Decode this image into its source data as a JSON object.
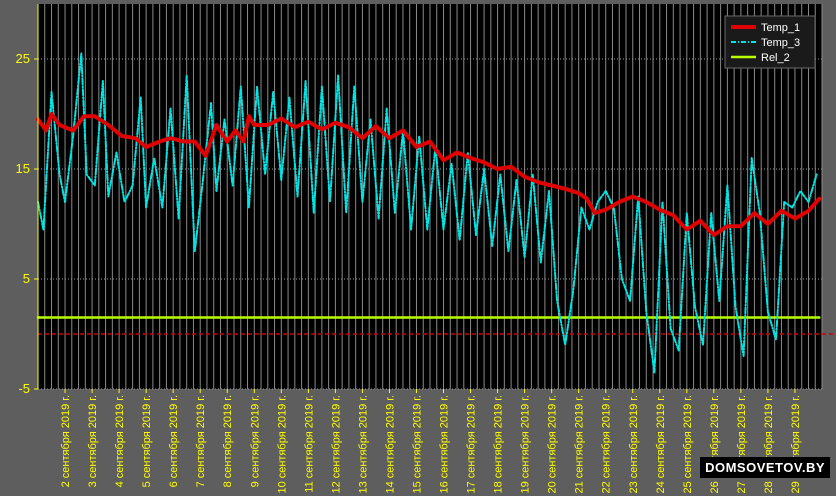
{
  "chart_data": {
    "type": "line",
    "title": "",
    "xlabel": "",
    "ylabel": "",
    "ylim": [
      -5,
      30
    ],
    "xlim": [
      1,
      30
    ],
    "yticks": [
      -5,
      5,
      15,
      25
    ],
    "x_tick_labels": [
      "2 сентября 2019 г.",
      "3 сентября 2019 г.",
      "4 сентября 2019 г.",
      "5 сентября 2019 г.",
      "6 сентября 2019 г.",
      "7 сентября 2019 г.",
      "8 сентября 2019 г.",
      "9 сентября 2019 г.",
      "10 сентября 2019 г.",
      "11 сентября 2019 г.",
      "12 сентября 2019 г.",
      "13 сентября 2019 г.",
      "14 сентября 2019 г.",
      "15 сентября 2019 г.",
      "16 сентября 2019 г.",
      "17 сентября 2019 г.",
      "18 сентября 2019 г.",
      "19 сентября 2019 г.",
      "20 сентября 2019 г.",
      "21 сентября 2019 г.",
      "22 сентября 2019 г.",
      "23 сентября 2019 г.",
      "24 сентября 2019 г.",
      "25 сентября 2019 г.",
      "26 сентября 2019 г.",
      "27 сентября 2019 г.",
      "28 сентября 2019 г.",
      "29 сентября 2019 г."
    ],
    "grid": true,
    "legend_position": "top-right",
    "series": [
      {
        "name": "Temp_1",
        "color": "#e00000",
        "style": "solid",
        "x": [
          1.0,
          1.3,
          1.5,
          1.8,
          2.3,
          2.7,
          3.1,
          3.6,
          4.1,
          4.6,
          5.0,
          5.5,
          5.9,
          6.4,
          6.8,
          7.2,
          7.6,
          8.0,
          8.3,
          8.6,
          8.8,
          9.0,
          9.5,
          10.0,
          10.5,
          11.0,
          11.5,
          12.0,
          12.5,
          13.0,
          13.5,
          14.0,
          14.5,
          15.0,
          15.5,
          16.0,
          16.5,
          17.0,
          17.5,
          18.0,
          18.5,
          19.0,
          19.5,
          20.0,
          20.5,
          21.0,
          21.3,
          21.6,
          22.0,
          22.5,
          23.0,
          23.5,
          24.0,
          24.5,
          25.0,
          25.5,
          26.0,
          26.5,
          27.0,
          27.5,
          28.0,
          28.5,
          29.0,
          29.5,
          29.9
        ],
        "y": [
          19.5,
          18.5,
          20.0,
          19.0,
          18.5,
          19.8,
          19.8,
          19.0,
          18.0,
          17.8,
          17.0,
          17.5,
          17.8,
          17.5,
          17.5,
          16.2,
          19.0,
          17.5,
          18.5,
          17.5,
          19.8,
          19.0,
          19.0,
          19.6,
          18.8,
          19.3,
          18.6,
          19.2,
          18.8,
          17.8,
          18.9,
          17.8,
          18.5,
          17.0,
          17.5,
          15.8,
          16.5,
          16.0,
          15.6,
          15.0,
          15.2,
          14.3,
          13.8,
          13.5,
          13.2,
          12.8,
          12.3,
          11.0,
          11.3,
          12.0,
          12.5,
          12.0,
          11.3,
          10.8,
          9.5,
          10.3,
          9.0,
          9.8,
          9.8,
          11.0,
          10.0,
          11.2,
          10.5,
          11.2,
          12.3
        ]
      },
      {
        "name": "Temp_3",
        "color": "#00e5e5",
        "style": "dashdot",
        "x": [
          1.0,
          1.2,
          1.5,
          1.8,
          2.0,
          2.3,
          2.6,
          2.8,
          3.1,
          3.4,
          3.6,
          3.9,
          4.2,
          4.5,
          4.8,
          5.0,
          5.3,
          5.6,
          5.9,
          6.2,
          6.5,
          6.8,
          7.1,
          7.4,
          7.6,
          7.9,
          8.2,
          8.5,
          8.8,
          9.1,
          9.4,
          9.7,
          10.0,
          10.3,
          10.6,
          10.9,
          11.2,
          11.5,
          11.8,
          12.1,
          12.4,
          12.7,
          13.0,
          13.3,
          13.6,
          13.9,
          14.2,
          14.5,
          14.8,
          15.1,
          15.4,
          15.7,
          16.0,
          16.3,
          16.6,
          16.9,
          17.2,
          17.5,
          17.8,
          18.1,
          18.4,
          18.7,
          19.0,
          19.3,
          19.6,
          19.9,
          20.2,
          20.5,
          20.8,
          21.1,
          21.4,
          21.7,
          22.0,
          22.3,
          22.6,
          22.9,
          23.2,
          23.5,
          23.8,
          24.1,
          24.4,
          24.7,
          25.0,
          25.3,
          25.6,
          25.9,
          26.2,
          26.5,
          26.8,
          27.1,
          27.4,
          27.7,
          28.0,
          28.3,
          28.6,
          28.9,
          29.2,
          29.5,
          29.8
        ],
        "y": [
          12.0,
          9.5,
          22.0,
          14.5,
          12.0,
          18.0,
          25.5,
          14.5,
          13.5,
          23.0,
          12.5,
          16.5,
          12.0,
          13.5,
          21.5,
          11.5,
          16.0,
          11.5,
          20.5,
          10.5,
          23.5,
          7.5,
          14.0,
          21.0,
          13.0,
          19.5,
          13.5,
          22.5,
          11.5,
          22.5,
          14.5,
          22.0,
          14.0,
          21.5,
          12.5,
          23.0,
          11.0,
          22.5,
          12.0,
          23.5,
          11.0,
          22.5,
          12.0,
          19.5,
          10.5,
          20.5,
          11.0,
          18.5,
          9.5,
          18.0,
          9.5,
          17.0,
          9.5,
          15.5,
          8.5,
          16.5,
          9.0,
          15.0,
          8.0,
          14.5,
          7.5,
          14.0,
          7.0,
          14.5,
          6.5,
          13.0,
          3.0,
          -1.0,
          4.0,
          11.5,
          9.5,
          12.0,
          13.0,
          11.5,
          5.0,
          3.0,
          12.5,
          2.0,
          -3.5,
          12.0,
          0.5,
          -1.5,
          11.0,
          2.5,
          -1.0,
          11.0,
          3.0,
          13.5,
          2.5,
          -2.0,
          16.0,
          11.0,
          2.0,
          -0.5,
          12.0,
          11.5,
          13.0,
          12.0,
          14.5
        ]
      },
      {
        "name": "Rel_2",
        "color": "#b7ff00",
        "style": "solid",
        "x": [
          1.0,
          29.9
        ],
        "y": [
          1.5,
          1.5
        ]
      }
    ],
    "reference_lines": [
      {
        "color": "#cc0000",
        "style": "dashed",
        "y": 0
      }
    ]
  },
  "watermark": "DOMSOVETOV.BY"
}
